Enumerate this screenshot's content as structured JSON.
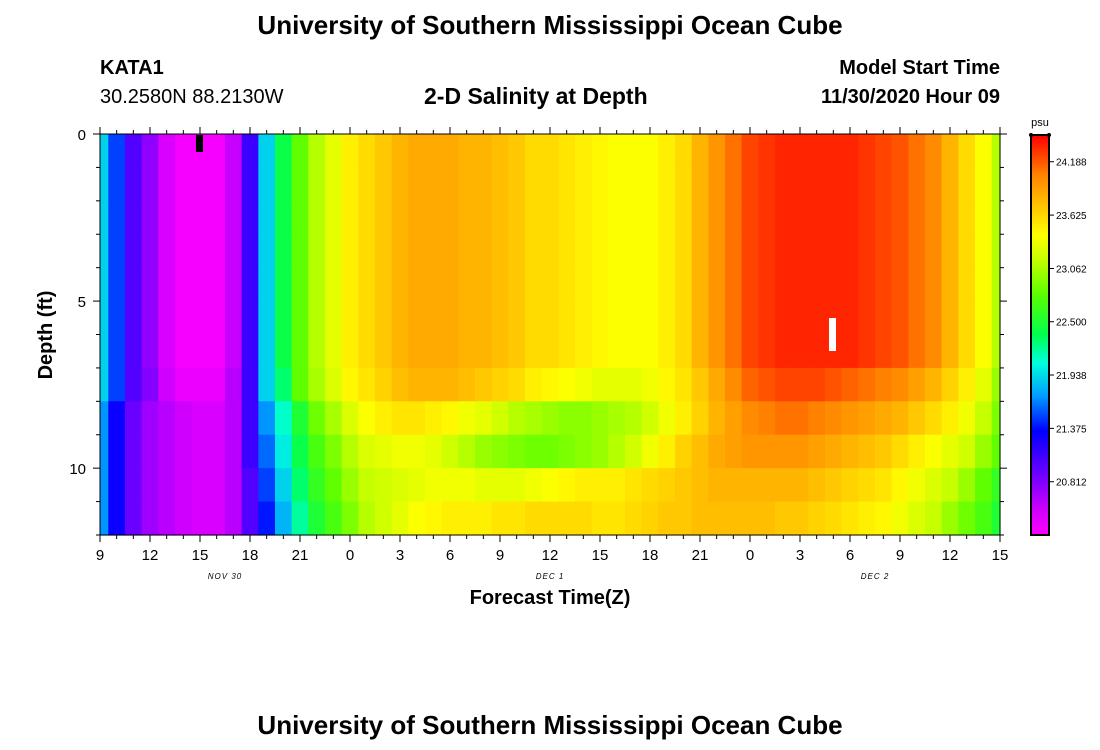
{
  "header": {
    "title": "University of Southern Mississippi Ocean Cube",
    "station": "KATA1",
    "coords": "30.2580N 88.2130W",
    "subtitle": "2-D Salinity at Depth",
    "model_label": "Model Start Time",
    "model_time": "11/30/2020 Hour 09"
  },
  "footer": {
    "title": "University of Southern Mississippi Ocean Cube"
  },
  "chart_data": {
    "type": "heatmap",
    "xlabel": "Forecast Time(Z)",
    "ylabel": "Depth (ft)",
    "x_range_hours": [
      0,
      54
    ],
    "y_range": [
      0,
      12
    ],
    "x_tick_labels": [
      "9",
      "12",
      "15",
      "18",
      "21",
      "0",
      "3",
      "6",
      "9",
      "12",
      "15",
      "18",
      "21",
      "0",
      "3",
      "6",
      "9",
      "12",
      "15"
    ],
    "y_ticks": [
      0,
      5,
      10
    ],
    "date_labels": [
      {
        "label": "NOV 30",
        "hour": 7.5
      },
      {
        "label": "DEC 1",
        "hour": 27
      },
      {
        "label": "DEC 2",
        "hour": 46.5
      }
    ],
    "colorbar": {
      "unit": "psu",
      "min": 20.25,
      "max": 24.47,
      "ticks": [
        "24.188",
        "23.625",
        "23.062",
        "22.500",
        "21.938",
        "21.375",
        "20.812"
      ],
      "tick_values": [
        24.188,
        23.625,
        23.062,
        22.5,
        21.938,
        21.375,
        20.812
      ]
    },
    "series": [
      {
        "hours": [
          0,
          1,
          2,
          3,
          4,
          5,
          6,
          7,
          8,
          9,
          10,
          11,
          12,
          13,
          14,
          15,
          16,
          17,
          18,
          19,
          20,
          21,
          22,
          23,
          24,
          25,
          26,
          27,
          28,
          29,
          30,
          31,
          32,
          33,
          34,
          35,
          36,
          37,
          38,
          39,
          40,
          41,
          42,
          43,
          44,
          45,
          46,
          47,
          48,
          49,
          50,
          51,
          52,
          53,
          54
        ]
      },
      {
        "depth_ft": 0.5,
        "values": [
          21.9,
          21.5,
          21.0,
          20.75,
          20.45,
          20.3,
          20.3,
          20.3,
          20.55,
          21.1,
          21.9,
          22.4,
          22.8,
          23.1,
          23.3,
          23.5,
          23.6,
          23.7,
          23.8,
          23.85,
          23.85,
          23.85,
          23.8,
          23.8,
          23.75,
          23.7,
          23.6,
          23.6,
          23.55,
          23.5,
          23.45,
          23.4,
          23.4,
          23.4,
          23.5,
          23.6,
          23.8,
          23.95,
          24.1,
          24.25,
          24.3,
          24.35,
          24.35,
          24.35,
          24.35,
          24.35,
          24.3,
          24.25,
          24.2,
          24.1,
          24.0,
          23.8,
          23.6,
          23.4,
          23.1
        ]
      },
      {
        "depth_ft": 1.5,
        "values": [
          21.9,
          21.5,
          21.0,
          20.75,
          20.45,
          20.3,
          20.3,
          20.3,
          20.55,
          21.1,
          21.9,
          22.4,
          22.8,
          23.1,
          23.3,
          23.5,
          23.6,
          23.7,
          23.8,
          23.85,
          23.85,
          23.85,
          23.8,
          23.8,
          23.75,
          23.7,
          23.6,
          23.6,
          23.55,
          23.5,
          23.45,
          23.4,
          23.4,
          23.4,
          23.5,
          23.6,
          23.8,
          23.95,
          24.1,
          24.25,
          24.3,
          24.35,
          24.35,
          24.35,
          24.35,
          24.35,
          24.3,
          24.25,
          24.2,
          24.1,
          24.0,
          23.8,
          23.6,
          23.4,
          23.1
        ]
      },
      {
        "depth_ft": 2.5,
        "values": [
          21.9,
          21.5,
          21.0,
          20.75,
          20.45,
          20.3,
          20.3,
          20.3,
          20.55,
          21.1,
          21.9,
          22.4,
          22.8,
          23.1,
          23.3,
          23.5,
          23.6,
          23.7,
          23.8,
          23.85,
          23.85,
          23.85,
          23.8,
          23.8,
          23.75,
          23.7,
          23.6,
          23.6,
          23.55,
          23.5,
          23.45,
          23.4,
          23.4,
          23.4,
          23.5,
          23.6,
          23.8,
          23.95,
          24.1,
          24.25,
          24.3,
          24.35,
          24.35,
          24.35,
          24.35,
          24.35,
          24.3,
          24.25,
          24.2,
          24.1,
          24.0,
          23.8,
          23.6,
          23.4,
          23.1
        ]
      },
      {
        "depth_ft": 3.5,
        "values": [
          21.9,
          21.5,
          21.0,
          20.75,
          20.45,
          20.3,
          20.3,
          20.3,
          20.55,
          21.1,
          21.9,
          22.4,
          22.8,
          23.1,
          23.3,
          23.5,
          23.6,
          23.7,
          23.8,
          23.85,
          23.85,
          23.85,
          23.8,
          23.8,
          23.75,
          23.7,
          23.6,
          23.6,
          23.55,
          23.5,
          23.45,
          23.4,
          23.4,
          23.4,
          23.5,
          23.6,
          23.8,
          23.95,
          24.1,
          24.25,
          24.3,
          24.35,
          24.35,
          24.35,
          24.35,
          24.35,
          24.3,
          24.25,
          24.2,
          24.1,
          24.0,
          23.8,
          23.6,
          23.4,
          23.1
        ]
      },
      {
        "depth_ft": 4.5,
        "values": [
          21.9,
          21.5,
          21.0,
          20.75,
          20.45,
          20.3,
          20.3,
          20.3,
          20.55,
          21.1,
          21.9,
          22.4,
          22.8,
          23.1,
          23.3,
          23.5,
          23.6,
          23.7,
          23.8,
          23.85,
          23.85,
          23.85,
          23.8,
          23.8,
          23.75,
          23.7,
          23.6,
          23.6,
          23.55,
          23.5,
          23.45,
          23.4,
          23.4,
          23.4,
          23.5,
          23.6,
          23.8,
          23.95,
          24.1,
          24.25,
          24.3,
          24.35,
          24.35,
          24.35,
          24.35,
          24.35,
          24.3,
          24.25,
          24.2,
          24.1,
          24.0,
          23.8,
          23.6,
          23.4,
          23.1
        ]
      },
      {
        "depth_ft": 5.5,
        "values": [
          21.9,
          21.5,
          21.0,
          20.75,
          20.45,
          20.3,
          20.3,
          20.3,
          20.55,
          21.1,
          21.9,
          22.4,
          22.8,
          23.1,
          23.3,
          23.5,
          23.6,
          23.7,
          23.8,
          23.85,
          23.85,
          23.85,
          23.8,
          23.8,
          23.75,
          23.7,
          23.6,
          23.6,
          23.55,
          23.5,
          23.45,
          23.4,
          23.4,
          23.4,
          23.5,
          23.6,
          23.8,
          23.95,
          24.1,
          24.25,
          24.3,
          24.35,
          24.35,
          24.35,
          24.35,
          24.35,
          24.3,
          24.25,
          24.2,
          24.1,
          24.0,
          23.8,
          23.6,
          23.4,
          23.1
        ]
      },
      {
        "depth_ft": 6.5,
        "values": [
          21.9,
          21.5,
          21.0,
          20.75,
          20.45,
          20.3,
          20.3,
          20.3,
          20.55,
          21.1,
          21.9,
          22.4,
          22.8,
          23.1,
          23.3,
          23.5,
          23.6,
          23.7,
          23.8,
          23.85,
          23.85,
          23.85,
          23.8,
          23.8,
          23.75,
          23.7,
          23.6,
          23.6,
          23.55,
          23.5,
          23.45,
          23.4,
          23.4,
          23.4,
          23.5,
          23.6,
          23.8,
          23.95,
          24.1,
          24.25,
          24.3,
          24.35,
          24.35,
          24.35,
          24.35,
          24.35,
          24.3,
          24.25,
          24.2,
          24.1,
          24.0,
          23.8,
          23.6,
          23.4,
          23.1
        ]
      },
      {
        "depth_ft": 7.5,
        "values": [
          21.9,
          21.5,
          21.0,
          20.8,
          20.5,
          20.35,
          20.35,
          20.35,
          20.6,
          21.1,
          21.9,
          22.3,
          22.8,
          23.05,
          23.25,
          23.45,
          23.55,
          23.65,
          23.75,
          23.8,
          23.8,
          23.8,
          23.75,
          23.7,
          23.65,
          23.6,
          23.5,
          23.45,
          23.4,
          23.35,
          23.3,
          23.3,
          23.3,
          23.35,
          23.45,
          23.55,
          23.7,
          23.85,
          24.0,
          24.15,
          24.2,
          24.25,
          24.25,
          24.25,
          24.2,
          24.15,
          24.1,
          24.05,
          24.0,
          23.9,
          23.8,
          23.65,
          23.5,
          23.3,
          23.0
        ]
      },
      {
        "depth_ft": 8.5,
        "values": [
          21.7,
          21.3,
          20.9,
          20.7,
          20.6,
          20.5,
          20.45,
          20.45,
          20.6,
          21.1,
          21.7,
          22.1,
          22.5,
          22.85,
          23.05,
          23.25,
          23.4,
          23.5,
          23.55,
          23.55,
          23.5,
          23.45,
          23.35,
          23.3,
          23.2,
          23.1,
          23.05,
          23.0,
          22.95,
          22.95,
          23.0,
          23.05,
          23.1,
          23.2,
          23.35,
          23.5,
          23.65,
          23.8,
          23.9,
          24.0,
          24.05,
          24.1,
          24.1,
          24.05,
          24.0,
          23.95,
          23.9,
          23.85,
          23.8,
          23.7,
          23.6,
          23.5,
          23.35,
          23.15,
          22.9
        ]
      },
      {
        "depth_ft": 9.5,
        "values": [
          21.7,
          21.3,
          20.9,
          20.7,
          20.6,
          20.5,
          20.45,
          20.45,
          20.6,
          21.1,
          21.6,
          22.0,
          22.4,
          22.7,
          22.9,
          23.1,
          23.25,
          23.3,
          23.35,
          23.35,
          23.3,
          23.2,
          23.1,
          23.0,
          22.95,
          22.9,
          22.85,
          22.85,
          22.9,
          22.95,
          23.0,
          23.1,
          23.2,
          23.35,
          23.5,
          23.65,
          23.75,
          23.85,
          23.9,
          23.95,
          23.95,
          23.95,
          23.95,
          23.9,
          23.85,
          23.8,
          23.75,
          23.7,
          23.6,
          23.5,
          23.4,
          23.3,
          23.2,
          23.0,
          22.8
        ]
      },
      {
        "depth_ft": 10.5,
        "values": [
          21.7,
          21.3,
          20.9,
          20.7,
          20.6,
          20.5,
          20.45,
          20.45,
          20.6,
          21.0,
          21.5,
          21.9,
          22.3,
          22.6,
          22.8,
          23.0,
          23.15,
          23.2,
          23.25,
          23.3,
          23.35,
          23.35,
          23.35,
          23.3,
          23.3,
          23.3,
          23.35,
          23.4,
          23.45,
          23.5,
          23.5,
          23.5,
          23.55,
          23.6,
          23.65,
          23.7,
          23.75,
          23.8,
          23.8,
          23.8,
          23.8,
          23.8,
          23.8,
          23.75,
          23.7,
          23.65,
          23.6,
          23.55,
          23.45,
          23.35,
          23.25,
          23.15,
          23.0,
          22.8,
          22.6
        ]
      },
      {
        "depth_ft": 11.5,
        "values": [
          21.7,
          21.3,
          20.9,
          20.7,
          20.6,
          20.5,
          20.45,
          20.45,
          20.6,
          21.0,
          21.4,
          21.8,
          22.2,
          22.5,
          22.7,
          22.9,
          23.1,
          23.2,
          23.3,
          23.4,
          23.45,
          23.5,
          23.5,
          23.5,
          23.55,
          23.55,
          23.6,
          23.6,
          23.6,
          23.6,
          23.55,
          23.55,
          23.6,
          23.65,
          23.7,
          23.7,
          23.75,
          23.75,
          23.75,
          23.75,
          23.75,
          23.7,
          23.7,
          23.65,
          23.6,
          23.55,
          23.5,
          23.45,
          23.35,
          23.25,
          23.15,
          23.0,
          22.85,
          22.7,
          22.5
        ]
      }
    ]
  }
}
